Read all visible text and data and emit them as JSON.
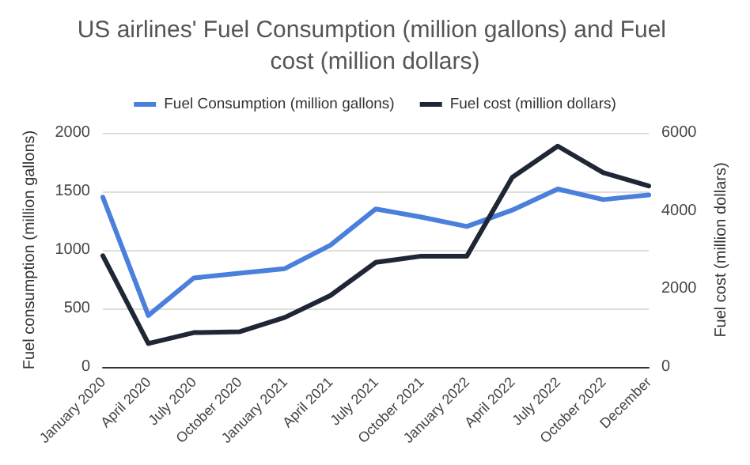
{
  "chart_data": {
    "type": "line",
    "title": "US airlines' Fuel Consumption (million gallons) and Fuel cost (million dollars)",
    "ylabel": "Fuel consumption (million gallons)",
    "y2label": "Fuel cost (million dollars)",
    "categories": [
      "January 2020",
      "April 2020",
      "July 2020",
      "October 2020",
      "January 2021",
      "April 2021",
      "July 2021",
      "October 2021",
      "January 2022",
      "April 2022",
      "July 2022",
      "October 2022",
      "December"
    ],
    "series": [
      {
        "name": "Fuel Consumption (million gallons)",
        "color": "#4a7fdc",
        "values": [
          1450,
          440,
          760,
          800,
          840,
          1040,
          1350,
          1280,
          1200,
          1340,
          1520,
          1430,
          1470
        ]
      },
      {
        "name": "Fuel cost (million dollars)",
        "color": "#1f2635",
        "axis": "y2",
        "values": [
          2850,
          600,
          880,
          900,
          1270,
          1830,
          2680,
          2840,
          2840,
          4860,
          5660,
          4980,
          4640
        ]
      }
    ],
    "ylim": [
      0,
      2000
    ],
    "yticks": [
      0,
      500,
      1000,
      1500,
      2000
    ],
    "y2lim": [
      0,
      6000
    ],
    "y2ticks": [
      0,
      2000,
      4000,
      6000
    ],
    "grid": "y",
    "legend": "top",
    "marker": "none",
    "line_style": "solid"
  }
}
